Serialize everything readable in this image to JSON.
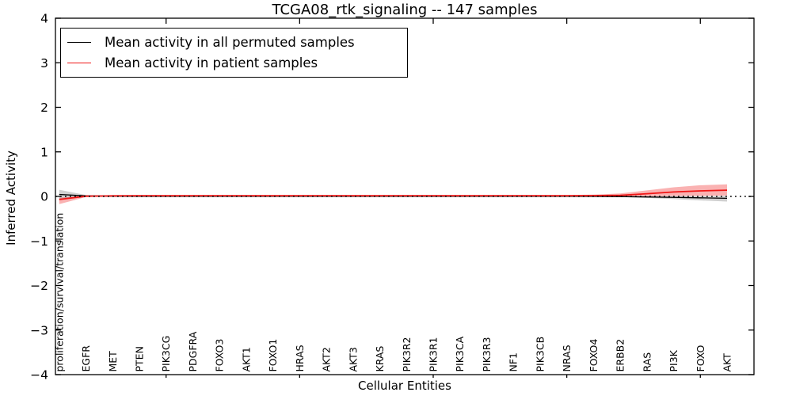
{
  "figure": {
    "title": "TCGA08_rtk_signaling -- 147 samples",
    "xlabel": "Cellular Entities",
    "ylabel": "Inferred Activity"
  },
  "legend": {
    "entries": [
      {
        "label": "Mean activity in all permuted samples",
        "color": "#000000"
      },
      {
        "label": "Mean activity in patient samples",
        "color": "#f01616"
      }
    ]
  },
  "chart_data": {
    "type": "line",
    "title": "TCGA08_rtk_signaling -- 147 samples",
    "xlabel": "Cellular Entities",
    "ylabel": "Inferred Activity",
    "ylim": [
      -4,
      4
    ],
    "yticks": [
      -4,
      -3,
      -2,
      -1,
      0,
      1,
      2,
      3,
      4
    ],
    "grid": false,
    "zero_line_style": "dotted",
    "legend_position": "upper left",
    "x_major_tick_indices": [
      4,
      9,
      14,
      19,
      24
    ],
    "categories": [
      "proliferation/survival/translation",
      "EGFR",
      "MET",
      "PTEN",
      "PIK3CG",
      "PDGFRA",
      "FOXO3",
      "AKT1",
      "FOXO1",
      "HRAS",
      "AKT2",
      "AKT3",
      "KRAS",
      "PIK3R2",
      "PIK3R1",
      "PIK3CA",
      "PIK3R3",
      "NF1",
      "PIK3CB",
      "NRAS",
      "FOXO4",
      "ERBB2",
      "RAS",
      "PI3K",
      "FOXO",
      "AKT"
    ],
    "series": [
      {
        "name": "Mean activity in all permuted samples",
        "color": "#000000",
        "band_color": "rgba(40,40,40,0.22)",
        "line_width": 1.3,
        "mean": [
          0.045,
          0.012,
          0.006,
          0.004,
          0.003,
          0.003,
          0.003,
          0.003,
          0.003,
          0.003,
          0.003,
          0.003,
          0.003,
          0.003,
          0.003,
          0.003,
          0.003,
          0.003,
          0.003,
          0.002,
          0.0,
          -0.003,
          -0.012,
          -0.022,
          -0.032,
          -0.042
        ],
        "upper": [
          0.15,
          0.03,
          0.015,
          0.01,
          0.008,
          0.008,
          0.008,
          0.008,
          0.008,
          0.008,
          0.008,
          0.008,
          0.008,
          0.008,
          0.008,
          0.008,
          0.008,
          0.008,
          0.008,
          0.008,
          0.008,
          0.006,
          0.005,
          0.006,
          0.008,
          0.01
        ],
        "lower": [
          -0.06,
          -0.01,
          -0.006,
          -0.004,
          -0.003,
          -0.003,
          -0.003,
          -0.003,
          -0.003,
          -0.003,
          -0.003,
          -0.003,
          -0.003,
          -0.003,
          -0.003,
          -0.003,
          -0.003,
          -0.003,
          -0.003,
          -0.005,
          -0.008,
          -0.012,
          -0.035,
          -0.06,
          -0.09,
          -0.115
        ]
      },
      {
        "name": "Mean activity in patient samples",
        "color": "#f01616",
        "band_color": "rgba(240,22,22,0.33)",
        "line_width": 1.8,
        "mean": [
          -0.07,
          0.005,
          0.013,
          0.016,
          0.016,
          0.016,
          0.016,
          0.016,
          0.016,
          0.016,
          0.016,
          0.016,
          0.016,
          0.016,
          0.016,
          0.016,
          0.016,
          0.016,
          0.016,
          0.016,
          0.018,
          0.025,
          0.06,
          0.1,
          0.125,
          0.14
        ],
        "upper": [
          -0.03,
          0.02,
          0.028,
          0.032,
          0.032,
          0.032,
          0.032,
          0.032,
          0.032,
          0.032,
          0.032,
          0.032,
          0.032,
          0.032,
          0.032,
          0.032,
          0.032,
          0.032,
          0.032,
          0.032,
          0.04,
          0.065,
          0.135,
          0.205,
          0.25,
          0.27
        ],
        "lower": [
          -0.175,
          -0.012,
          -0.003,
          0.0,
          0.0,
          0.0,
          0.0,
          0.0,
          0.0,
          0.0,
          0.0,
          0.0,
          0.0,
          0.0,
          0.0,
          0.0,
          0.0,
          0.0,
          0.0,
          0.0,
          0.0,
          0.0,
          0.005,
          0.01,
          0.015,
          0.02
        ]
      }
    ]
  }
}
